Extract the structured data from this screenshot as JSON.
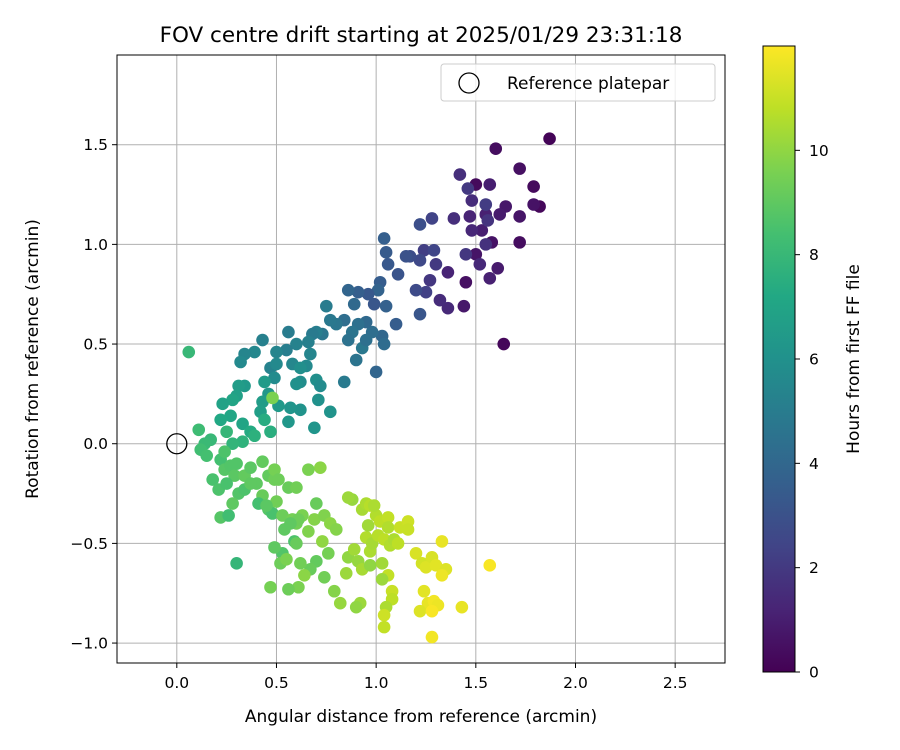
{
  "chart_data": {
    "type": "scatter",
    "title": "FOV centre drift starting at 2025/01/29 23:31:18",
    "xlabel": "Angular distance from reference (arcmin)",
    "ylabel": "Rotation from reference (arcmin)",
    "xlim": [
      -0.3,
      2.75
    ],
    "ylim": [
      -1.1,
      1.95
    ],
    "xticks": [
      0.0,
      0.5,
      1.0,
      1.5,
      2.0,
      2.5
    ],
    "yticks": [
      -1.0,
      -0.5,
      0.0,
      0.5,
      1.0,
      1.5
    ],
    "xtick_labels": [
      "0.0",
      "0.5",
      "1.0",
      "1.5",
      "2.0",
      "2.5"
    ],
    "ytick_labels": [
      "−1.0",
      "−0.5",
      "0.0",
      "0.5",
      "1.0",
      "1.5"
    ],
    "grid": true,
    "legend": {
      "position": "top-right",
      "entries": [
        "Reference platepar"
      ]
    },
    "reference_point": {
      "x": 0.0,
      "y": 0.0,
      "label": "Reference platepar"
    },
    "colorbar": {
      "label": "Hours from first FF file",
      "colormap": "viridis",
      "range": [
        0,
        12
      ],
      "ticks": [
        0,
        2,
        4,
        6,
        8,
        10
      ],
      "tick_labels": [
        "0",
        "2",
        "4",
        "6",
        "8",
        "10"
      ]
    },
    "points": [
      [
        1.87,
        1.53,
        0.1
      ],
      [
        1.82,
        1.19,
        0.2
      ],
      [
        1.6,
        1.48,
        0.4
      ],
      [
        1.79,
        1.29,
        0.3
      ],
      [
        1.72,
        1.38,
        0.5
      ],
      [
        1.79,
        1.2,
        0.6
      ],
      [
        1.72,
        1.14,
        0.7
      ],
      [
        1.65,
        1.19,
        0.8
      ],
      [
        1.62,
        1.15,
        0.9
      ],
      [
        1.57,
        1.3,
        1.0
      ],
      [
        1.55,
        1.15,
        1.1
      ],
      [
        1.64,
        0.5,
        0.2
      ],
      [
        1.58,
        1.01,
        0.6
      ],
      [
        1.61,
        0.88,
        0.9
      ],
      [
        1.57,
        0.83,
        1.1
      ],
      [
        1.72,
        1.01,
        0.4
      ],
      [
        1.5,
        1.3,
        0.3
      ],
      [
        1.47,
        1.14,
        1.2
      ],
      [
        1.53,
        1.07,
        1.0
      ],
      [
        1.5,
        0.95,
        0.7
      ],
      [
        1.52,
        0.9,
        1.4
      ],
      [
        1.45,
        0.81,
        0.5
      ],
      [
        1.44,
        0.69,
        0.8
      ],
      [
        1.42,
        1.35,
        1.6
      ],
      [
        1.48,
        1.22,
        1.5
      ],
      [
        1.56,
        1.12,
        1.8
      ],
      [
        1.45,
        0.95,
        1.9
      ],
      [
        1.46,
        1.28,
        2.0
      ],
      [
        1.55,
        1.2,
        2.1
      ],
      [
        1.48,
        1.07,
        1.3
      ],
      [
        1.55,
        1.0,
        1.7
      ],
      [
        1.39,
        1.13,
        1.6
      ],
      [
        1.36,
        0.86,
        1.2
      ],
      [
        1.36,
        0.68,
        1.4
      ],
      [
        1.32,
        0.72,
        1.5
      ],
      [
        1.27,
        0.82,
        1.9
      ],
      [
        1.3,
        0.9,
        2.0
      ],
      [
        1.24,
        0.97,
        2.2
      ],
      [
        1.22,
        0.92,
        2.6
      ],
      [
        1.28,
        1.13,
        2.4
      ],
      [
        1.25,
        0.76,
        2.3
      ],
      [
        1.2,
        0.77,
        2.7
      ],
      [
        1.29,
        0.97,
        2.5
      ],
      [
        1.22,
        1.1,
        2.9
      ],
      [
        1.17,
        0.94,
        2.8
      ],
      [
        1.22,
        0.65,
        3.2
      ],
      [
        1.15,
        0.94,
        3.0
      ],
      [
        1.11,
        0.85,
        3.1
      ],
      [
        1.06,
        0.9,
        3.3
      ],
      [
        1.05,
        0.96,
        3.4
      ],
      [
        1.04,
        1.03,
        3.6
      ],
      [
        1.02,
        0.81,
        3.5
      ],
      [
        1.01,
        0.77,
        3.8
      ],
      [
        0.99,
        0.7,
        3.2
      ],
      [
        1.05,
        0.69,
        3.7
      ],
      [
        1.0,
        0.36,
        3.9
      ],
      [
        1.1,
        0.6,
        3.5
      ],
      [
        0.96,
        0.75,
        3.3
      ],
      [
        0.91,
        0.76,
        3.6
      ],
      [
        0.86,
        0.77,
        3.9
      ],
      [
        0.89,
        0.7,
        4.1
      ],
      [
        1.03,
        0.54,
        4.0
      ],
      [
        1.04,
        0.5,
        4.2
      ],
      [
        0.98,
        0.56,
        4.3
      ],
      [
        0.95,
        0.61,
        4.1
      ],
      [
        0.91,
        0.6,
        4.4
      ],
      [
        0.88,
        0.56,
        4.6
      ],
      [
        0.86,
        0.52,
        4.5
      ],
      [
        0.84,
        0.62,
        4.3
      ],
      [
        0.8,
        0.6,
        4.7
      ],
      [
        0.93,
        0.48,
        4.8
      ],
      [
        0.95,
        0.52,
        4.4
      ],
      [
        0.9,
        0.42,
        4.6
      ],
      [
        0.84,
        0.31,
        4.9
      ],
      [
        0.77,
        0.62,
        4.8
      ],
      [
        0.75,
        0.69,
        5.0
      ],
      [
        0.73,
        0.55,
        4.7
      ],
      [
        0.7,
        0.56,
        5.1
      ],
      [
        0.68,
        0.55,
        4.9
      ],
      [
        0.66,
        0.51,
        5.2
      ],
      [
        0.56,
        0.56,
        5.0
      ],
      [
        0.6,
        0.5,
        5.3
      ],
      [
        0.55,
        0.47,
        5.1
      ],
      [
        0.5,
        0.46,
        5.4
      ],
      [
        0.43,
        0.52,
        5.2
      ],
      [
        0.39,
        0.46,
        5.5
      ],
      [
        0.34,
        0.45,
        5.4
      ],
      [
        0.32,
        0.41,
        5.6
      ],
      [
        0.47,
        0.38,
        5.3
      ],
      [
        0.5,
        0.4,
        5.6
      ],
      [
        0.49,
        0.33,
        5.7
      ],
      [
        0.58,
        0.4,
        5.5
      ],
      [
        0.62,
        0.31,
        5.8
      ],
      [
        0.65,
        0.39,
        5.6
      ],
      [
        0.7,
        0.32,
        5.9
      ],
      [
        0.72,
        0.29,
        5.7
      ],
      [
        0.67,
        0.45,
        5.4
      ],
      [
        0.6,
        0.3,
        6.0
      ],
      [
        0.62,
        0.38,
        5.9
      ],
      [
        0.71,
        0.22,
        6.0
      ],
      [
        0.77,
        0.16,
        6.1
      ],
      [
        0.69,
        0.08,
        6.2
      ],
      [
        0.62,
        0.17,
        6.1
      ],
      [
        0.56,
        0.11,
        6.3
      ],
      [
        0.57,
        0.18,
        6.2
      ],
      [
        0.51,
        0.19,
        6.4
      ],
      [
        0.46,
        0.25,
        6.3
      ],
      [
        0.44,
        0.31,
        6.5
      ],
      [
        0.43,
        0.21,
        6.6
      ],
      [
        0.42,
        0.16,
        6.7
      ],
      [
        0.34,
        0.29,
        6.4
      ],
      [
        0.31,
        0.29,
        6.6
      ],
      [
        0.3,
        0.24,
        6.8
      ],
      [
        0.28,
        0.22,
        7.0
      ],
      [
        0.23,
        0.2,
        6.9
      ],
      [
        0.27,
        0.14,
        7.1
      ],
      [
        0.22,
        0.12,
        7.2
      ],
      [
        0.33,
        0.1,
        7.0
      ],
      [
        0.37,
        0.06,
        7.3
      ],
      [
        0.44,
        0.12,
        7.4
      ],
      [
        0.47,
        0.06,
        7.5
      ],
      [
        0.39,
        0.04,
        7.6
      ],
      [
        0.33,
        0.01,
        7.7
      ],
      [
        0.28,
        0.0,
        7.8
      ],
      [
        0.25,
        0.06,
        7.9
      ],
      [
        0.17,
        0.02,
        8.0
      ],
      [
        0.11,
        0.07,
        8.2
      ],
      [
        0.14,
        0.0,
        8.1
      ],
      [
        0.12,
        -0.03,
        8.3
      ],
      [
        0.15,
        -0.06,
        8.4
      ],
      [
        0.06,
        0.46,
        8.0
      ],
      [
        0.48,
        0.23,
        9.6
      ],
      [
        0.18,
        -0.18,
        8.5
      ],
      [
        0.21,
        -0.23,
        8.6
      ],
      [
        0.22,
        -0.08,
        8.4
      ],
      [
        0.24,
        -0.13,
        8.8
      ],
      [
        0.27,
        -0.11,
        8.7
      ],
      [
        0.29,
        -0.16,
        8.9
      ],
      [
        0.25,
        -0.2,
        8.5
      ],
      [
        0.31,
        -0.25,
        8.7
      ],
      [
        0.34,
        -0.23,
        8.6
      ],
      [
        0.28,
        -0.3,
        9.0
      ],
      [
        0.22,
        -0.37,
        8.8
      ],
      [
        0.26,
        -0.36,
        8.3
      ],
      [
        0.3,
        -0.6,
        7.9
      ],
      [
        0.34,
        -0.16,
        9.1
      ],
      [
        0.37,
        -0.12,
        8.9
      ],
      [
        0.4,
        -0.2,
        9.0
      ],
      [
        0.43,
        -0.26,
        9.2
      ],
      [
        0.46,
        -0.16,
        9.1
      ],
      [
        0.49,
        -0.18,
        9.3
      ],
      [
        0.41,
        -0.3,
        8.4
      ],
      [
        0.46,
        -0.33,
        8.8
      ],
      [
        0.48,
        -0.35,
        8.5
      ],
      [
        0.5,
        -0.29,
        9.4
      ],
      [
        0.53,
        -0.36,
        9.3
      ],
      [
        0.56,
        -0.22,
        9.2
      ],
      [
        0.54,
        -0.43,
        9.0
      ],
      [
        0.58,
        -0.38,
        9.5
      ],
      [
        0.6,
        -0.4,
        9.4
      ],
      [
        0.63,
        -0.36,
        9.6
      ],
      [
        0.59,
        -0.49,
        8.6
      ],
      [
        0.53,
        -0.55,
        8.7
      ],
      [
        0.49,
        -0.52,
        9.0
      ],
      [
        0.52,
        -0.6,
        9.3
      ],
      [
        0.47,
        -0.72,
        9.5
      ],
      [
        0.55,
        -0.58,
        9.6
      ],
      [
        0.6,
        -0.5,
        9.2
      ],
      [
        0.66,
        -0.44,
        9.7
      ],
      [
        0.69,
        -0.38,
        9.8
      ],
      [
        0.74,
        -0.36,
        9.7
      ],
      [
        0.77,
        -0.4,
        9.9
      ],
      [
        0.8,
        -0.43,
        9.8
      ],
      [
        0.73,
        -0.49,
        10.0
      ],
      [
        0.76,
        -0.55,
        9.5
      ],
      [
        0.7,
        -0.59,
        9.1
      ],
      [
        0.67,
        -0.63,
        9.2
      ],
      [
        0.62,
        -0.6,
        9.4
      ],
      [
        0.64,
        -0.66,
        9.9
      ],
      [
        0.61,
        -0.72,
        9.6
      ],
      [
        0.56,
        -0.73,
        9.3
      ],
      [
        0.74,
        -0.67,
        9.4
      ],
      [
        0.79,
        -0.74,
        9.8
      ],
      [
        0.82,
        -0.8,
        10.1
      ],
      [
        0.85,
        -0.65,
        10.2
      ],
      [
        0.86,
        -0.57,
        10.0
      ],
      [
        0.89,
        -0.53,
        10.3
      ],
      [
        0.91,
        -0.59,
        10.1
      ],
      [
        0.93,
        -0.63,
        10.4
      ],
      [
        0.92,
        -0.8,
        10.2
      ],
      [
        0.9,
        -0.82,
        10.0
      ],
      [
        0.97,
        -0.54,
        10.5
      ],
      [
        0.95,
        -0.47,
        10.6
      ],
      [
        0.98,
        -0.5,
        10.4
      ],
      [
        1.01,
        -0.46,
        10.7
      ],
      [
        1.04,
        -0.48,
        10.8
      ],
      [
        1.07,
        -0.51,
        10.6
      ],
      [
        1.03,
        -0.6,
        10.3
      ],
      [
        1.06,
        -0.66,
        10.9
      ],
      [
        1.08,
        -0.74,
        11.0
      ],
      [
        1.08,
        -0.78,
        10.8
      ],
      [
        1.05,
        -0.82,
        10.5
      ],
      [
        1.04,
        -0.86,
        11.1
      ],
      [
        1.04,
        -0.92,
        10.9
      ],
      [
        1.03,
        -0.68,
        10.2
      ],
      [
        0.97,
        -0.61,
        10.0
      ],
      [
        0.96,
        -0.41,
        10.3
      ],
      [
        1.0,
        -0.36,
        10.6
      ],
      [
        0.93,
        -0.33,
        10.4
      ],
      [
        0.88,
        -0.28,
        10.1
      ],
      [
        0.95,
        -0.3,
        10.5
      ],
      [
        0.97,
        -0.31,
        10.7
      ],
      [
        0.99,
        -0.31,
        10.5
      ],
      [
        1.02,
        -0.39,
        10.8
      ],
      [
        1.06,
        -0.37,
        10.9
      ],
      [
        1.06,
        -0.42,
        10.6
      ],
      [
        1.09,
        -0.48,
        10.5
      ],
      [
        1.11,
        -0.5,
        10.8
      ],
      [
        1.12,
        -0.42,
        11.0
      ],
      [
        1.16,
        -0.39,
        11.1
      ],
      [
        1.16,
        -0.43,
        11.0
      ],
      [
        1.2,
        -0.55,
        11.3
      ],
      [
        1.23,
        -0.6,
        11.2
      ],
      [
        1.25,
        -0.62,
        11.4
      ],
      [
        1.28,
        -0.57,
        11.3
      ],
      [
        1.3,
        -0.61,
        11.5
      ],
      [
        1.33,
        -0.49,
        11.6
      ],
      [
        1.35,
        -0.63,
        11.4
      ],
      [
        1.33,
        -0.66,
        11.7
      ],
      [
        1.24,
        -0.74,
        11.5
      ],
      [
        1.26,
        -0.8,
        11.6
      ],
      [
        1.29,
        -0.79,
        11.8
      ],
      [
        1.31,
        -0.81,
        11.7
      ],
      [
        1.22,
        -0.84,
        11.4
      ],
      [
        1.28,
        -0.84,
        11.9
      ],
      [
        1.28,
        -0.97,
        11.8
      ],
      [
        1.43,
        -0.82,
        11.6
      ],
      [
        1.57,
        -0.61,
        11.9
      ],
      [
        0.86,
        -0.27,
        10.2
      ],
      [
        0.72,
        -0.12,
        9.9
      ],
      [
        0.66,
        -0.13,
        9.6
      ],
      [
        0.6,
        -0.22,
        9.4
      ],
      [
        0.49,
        -0.13,
        9.5
      ],
      [
        0.51,
        -0.18,
        9.3
      ],
      [
        0.43,
        -0.09,
        9.1
      ],
      [
        0.37,
        -0.2,
        9.0
      ],
      [
        0.3,
        -0.1,
        8.7
      ],
      [
        0.24,
        -0.04,
        8.6
      ],
      [
        0.7,
        -0.3,
        9.2
      ],
      [
        0.61,
        -0.38,
        9.3
      ],
      [
        0.57,
        -0.4,
        9.0
      ],
      [
        0.45,
        -0.31,
        8.9
      ]
    ]
  }
}
